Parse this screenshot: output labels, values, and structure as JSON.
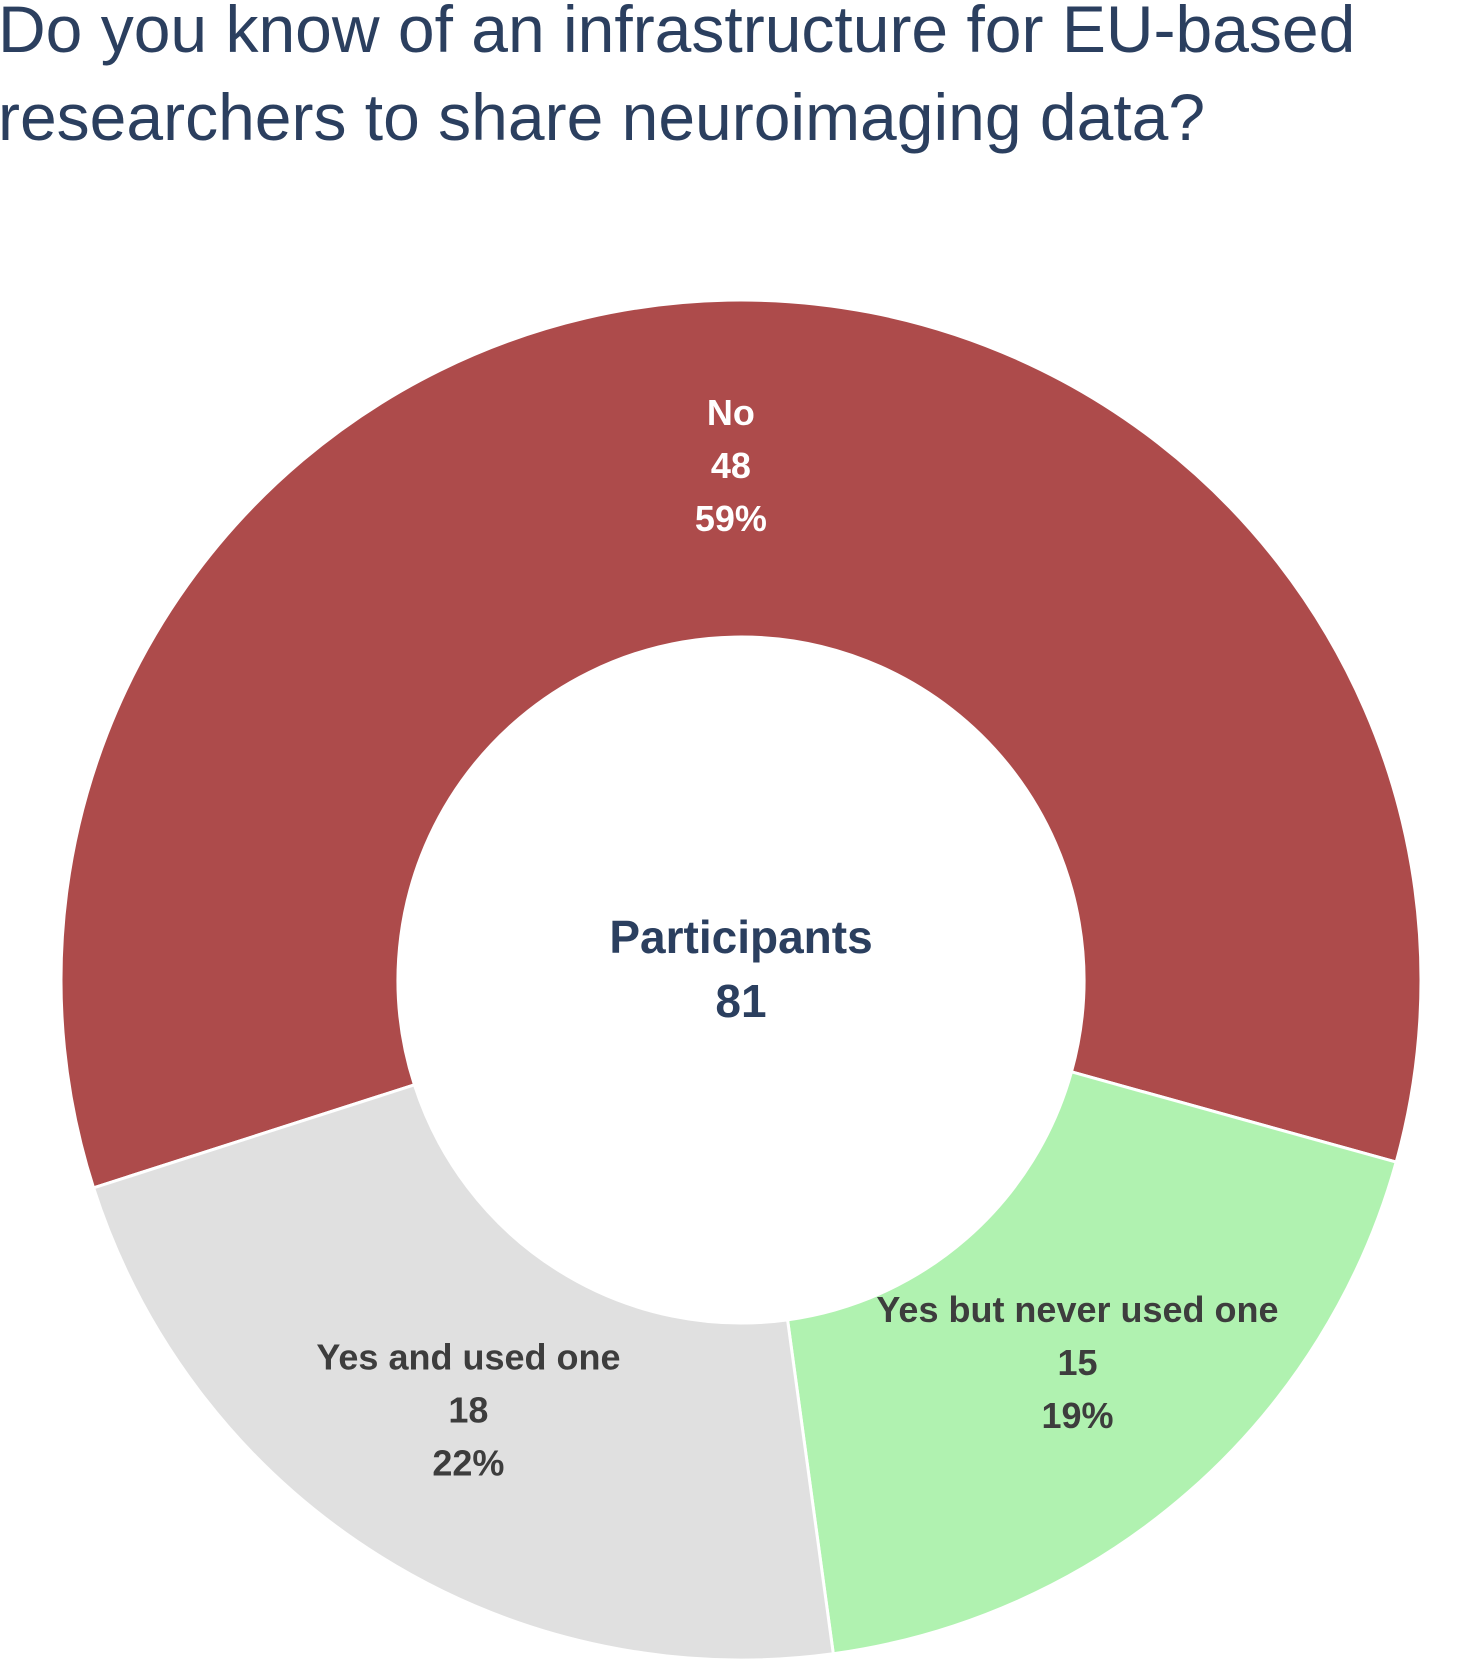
{
  "chart_data": {
    "type": "donut",
    "title": [
      "Do you know of an infrastructure for EU-based",
      "researchers to share neuroimaging data?"
    ],
    "categories": [
      "No",
      "Yes but never used one",
      "Yes and used one"
    ],
    "values": [
      48,
      15,
      18
    ],
    "percentages": [
      59,
      19,
      22
    ],
    "percentage_labels": [
      "59%",
      "19%",
      "22%"
    ],
    "colors": [
      "#ad4b4b",
      "#b0f2b0",
      "#e0e0e0"
    ],
    "label_colors": [
      "#ffffff",
      "#3d3d3d",
      "#3d3d3d"
    ],
    "center_label": "Participants",
    "total": 81
  }
}
